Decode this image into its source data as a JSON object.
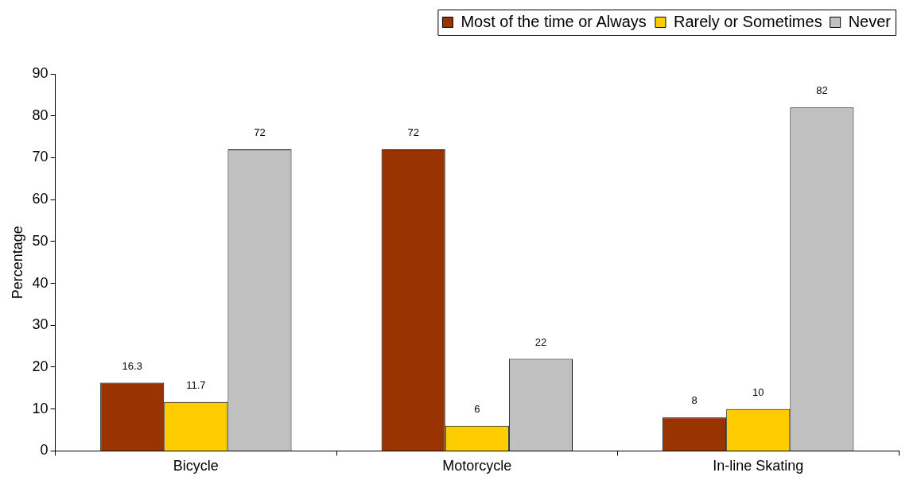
{
  "chart_data": {
    "type": "bar",
    "ylabel": "Percentage",
    "categories": [
      "Bicycle",
      "Motorcycle",
      "In-line Skating"
    ],
    "series": [
      {
        "name": "Most of the time or Always",
        "color": "#993300",
        "values": [
          16.3,
          72,
          8
        ]
      },
      {
        "name": "Rarely or Sometimes",
        "color": "#ffcc00",
        "values": [
          11.7,
          6,
          10
        ]
      },
      {
        "name": "Never",
        "color": "#c0c0c0",
        "values": [
          72,
          22,
          82
        ]
      }
    ],
    "ylim": [
      0,
      90
    ],
    "yticks": [
      0,
      10,
      20,
      30,
      40,
      50,
      60,
      70,
      80,
      90
    ],
    "grid": false,
    "legend": "top right",
    "data_labels": true
  }
}
